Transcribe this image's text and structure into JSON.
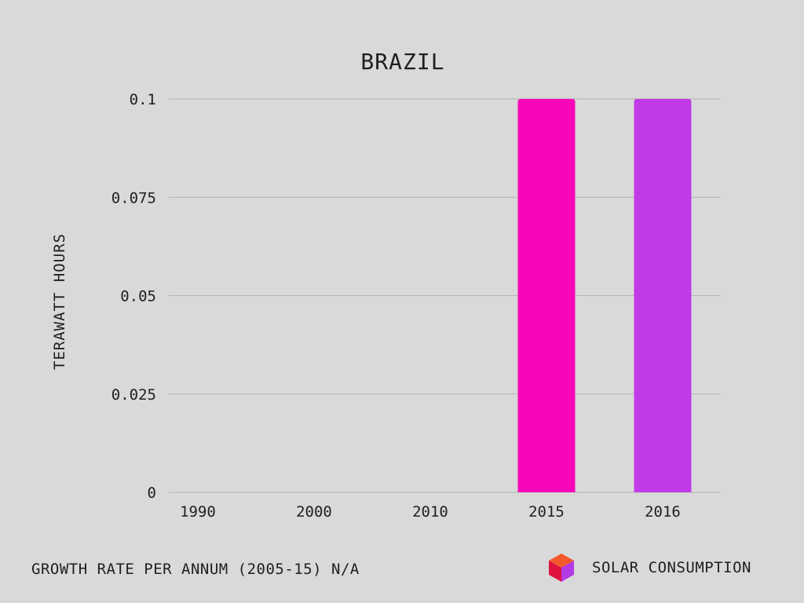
{
  "colors": {
    "background": "#d9d9d9",
    "bar_2015": "#f906b8",
    "bar_2016": "#c23be8",
    "grid": "#b3b3b3",
    "text": "#1f1f1f",
    "cube_top": "#f25a2c",
    "cube_left": "#e0123f",
    "cube_right": "#b43ae6"
  },
  "footer": {
    "growth_text": "GROWTH RATE PER ANNUM (2005-15) N/A",
    "legend_label": "SOLAR CONSUMPTION",
    "legend_icon": "cube-icon"
  },
  "chart_data": {
    "type": "bar",
    "title": "BRAZIL",
    "xlabel": "",
    "ylabel": "TERAWATT HOURS",
    "categories": [
      "1990",
      "2000",
      "2010",
      "2015",
      "2016"
    ],
    "values": [
      0,
      0,
      0,
      0.1,
      0.1
    ],
    "bar_colors": [
      "#f906b8",
      "#f906b8",
      "#f906b8",
      "#f906b8",
      "#c23be8"
    ],
    "ylim": [
      0,
      0.1
    ],
    "yticks": [
      "0",
      "0.025",
      "0.05",
      "0.075",
      "0.1"
    ],
    "ytick_values": [
      0,
      0.025,
      0.05,
      0.075,
      0.1
    ],
    "grid": true
  }
}
